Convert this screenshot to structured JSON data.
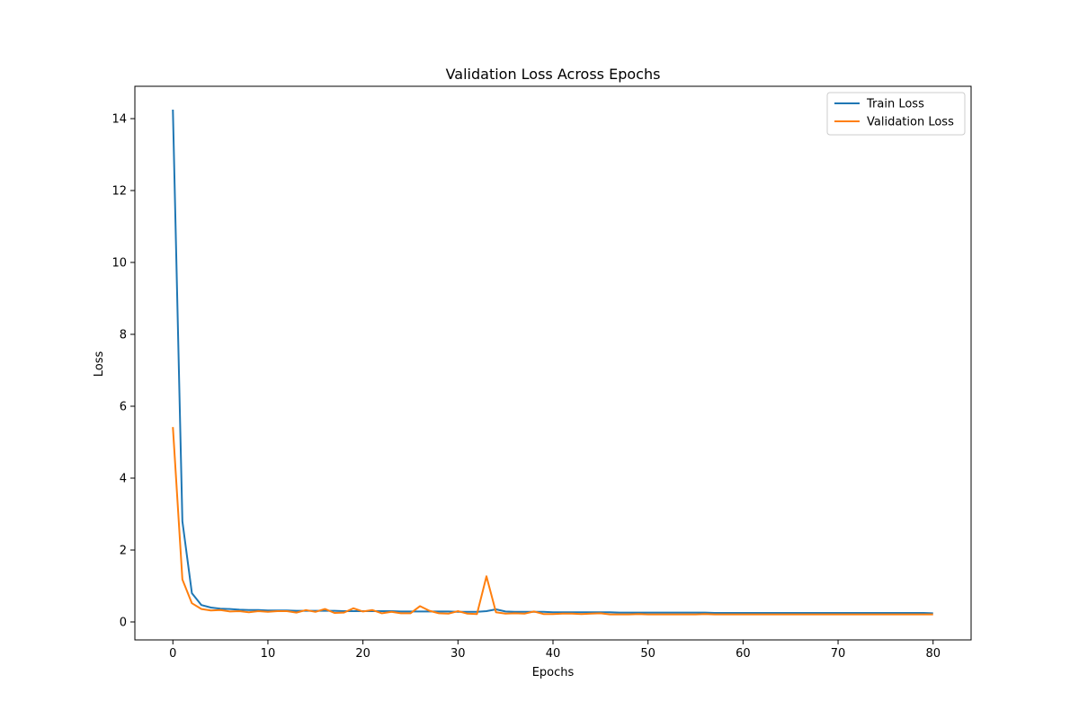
{
  "chart_data": {
    "type": "line",
    "title": "Validation Loss Across Epochs",
    "xlabel": "Epochs",
    "ylabel": "Loss",
    "xlim": [
      -4,
      84
    ],
    "ylim": [
      -0.5,
      14.9
    ],
    "xticks": [
      0,
      10,
      20,
      30,
      40,
      50,
      60,
      70,
      80
    ],
    "yticks": [
      0,
      2,
      4,
      6,
      8,
      10,
      12,
      14
    ],
    "grid": false,
    "legend": "top-right",
    "x": [
      0,
      1,
      2,
      3,
      4,
      5,
      6,
      7,
      8,
      9,
      10,
      11,
      12,
      13,
      14,
      15,
      16,
      17,
      18,
      19,
      20,
      21,
      22,
      23,
      24,
      25,
      26,
      27,
      28,
      29,
      30,
      31,
      32,
      33,
      34,
      35,
      36,
      37,
      38,
      39,
      40,
      41,
      42,
      43,
      44,
      45,
      46,
      47,
      48,
      49,
      50,
      51,
      52,
      53,
      54,
      55,
      56,
      57,
      58,
      59,
      60,
      61,
      62,
      63,
      64,
      65,
      66,
      67,
      68,
      69,
      70,
      71,
      72,
      73,
      74,
      75,
      76,
      77,
      78,
      79,
      80
    ],
    "series": [
      {
        "name": "Train Loss",
        "color": "#1f77b4",
        "values": [
          14.25,
          2.8,
          0.8,
          0.47,
          0.4,
          0.37,
          0.36,
          0.34,
          0.33,
          0.33,
          0.32,
          0.32,
          0.32,
          0.31,
          0.31,
          0.31,
          0.31,
          0.31,
          0.3,
          0.3,
          0.3,
          0.3,
          0.3,
          0.3,
          0.29,
          0.29,
          0.29,
          0.29,
          0.29,
          0.29,
          0.28,
          0.28,
          0.28,
          0.3,
          0.35,
          0.29,
          0.28,
          0.28,
          0.28,
          0.28,
          0.27,
          0.27,
          0.27,
          0.27,
          0.27,
          0.27,
          0.27,
          0.26,
          0.26,
          0.26,
          0.26,
          0.26,
          0.26,
          0.26,
          0.26,
          0.26,
          0.26,
          0.25,
          0.25,
          0.25,
          0.25,
          0.25,
          0.25,
          0.25,
          0.25,
          0.25,
          0.25,
          0.25,
          0.25,
          0.25,
          0.25,
          0.25,
          0.25,
          0.25,
          0.25,
          0.25,
          0.25,
          0.25,
          0.25,
          0.25,
          0.24
        ]
      },
      {
        "name": "Validation Loss",
        "color": "#ff7f0e",
        "values": [
          5.42,
          1.18,
          0.52,
          0.36,
          0.32,
          0.33,
          0.29,
          0.3,
          0.27,
          0.3,
          0.28,
          0.3,
          0.3,
          0.26,
          0.33,
          0.28,
          0.36,
          0.25,
          0.26,
          0.38,
          0.29,
          0.33,
          0.24,
          0.28,
          0.24,
          0.24,
          0.44,
          0.31,
          0.24,
          0.23,
          0.3,
          0.23,
          0.22,
          1.27,
          0.27,
          0.23,
          0.24,
          0.23,
          0.29,
          0.22,
          0.22,
          0.23,
          0.23,
          0.22,
          0.23,
          0.24,
          0.21,
          0.21,
          0.21,
          0.22,
          0.21,
          0.21,
          0.21,
          0.21,
          0.21,
          0.21,
          0.22,
          0.21,
          0.21,
          0.21,
          0.21,
          0.21,
          0.21,
          0.21,
          0.21,
          0.21,
          0.21,
          0.21,
          0.21,
          0.21,
          0.21,
          0.21,
          0.21,
          0.21,
          0.21,
          0.21,
          0.21,
          0.21,
          0.21,
          0.21,
          0.21
        ]
      }
    ]
  }
}
